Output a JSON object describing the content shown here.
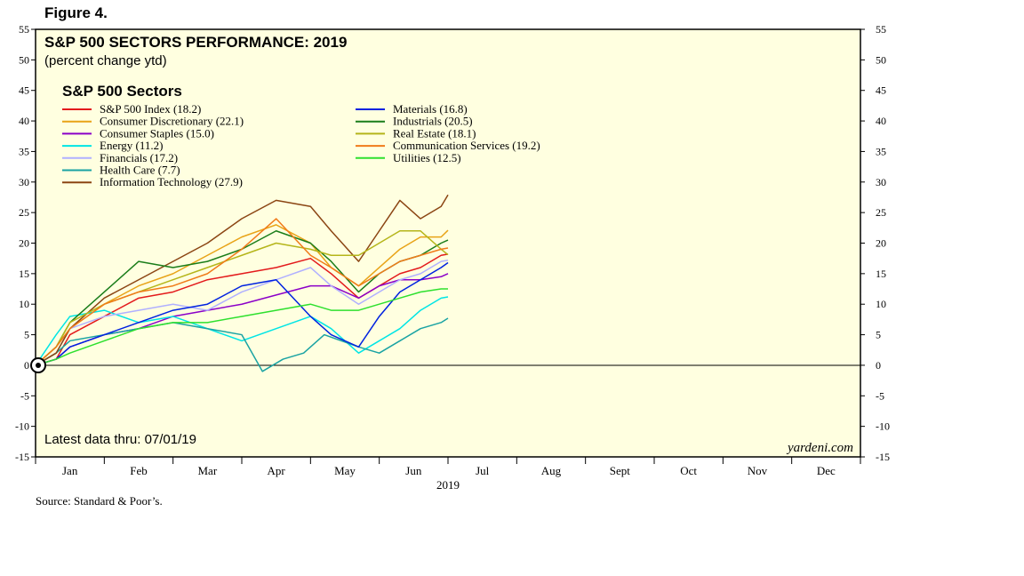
{
  "figure_label": "Figure 4.",
  "source": "Source: Standard & Poor’s.",
  "chart_data": {
    "type": "line",
    "title": "S&P 500 SECTORS PERFORMANCE: 2019",
    "subtitle": "(percent change ytd)",
    "legend_title": "S&P 500 Sectors",
    "year_label": "2019",
    "note": "Latest data thru: 07/01/19",
    "watermark": "yardeni.com",
    "ylim": [
      -15,
      55
    ],
    "y_ticks": [
      55,
      50,
      45,
      40,
      35,
      30,
      25,
      20,
      15,
      10,
      5,
      0,
      -5,
      -10,
      -15
    ],
    "months": [
      "Jan",
      "Feb",
      "Mar",
      "Apr",
      "May",
      "Jun",
      "Jul",
      "Aug",
      "Sept",
      "Oct",
      "Nov",
      "Dec"
    ],
    "x_range_months": [
      0,
      12
    ],
    "series": [
      {
        "name": "S&P 500 Index (18.2)",
        "color": "#e31a1c",
        "x": [
          0,
          0.3,
          0.5,
          1,
          1.5,
          2,
          2.5,
          3,
          3.5,
          4,
          4.3,
          4.7,
          5,
          5.3,
          5.6,
          5.9,
          6.0
        ],
        "values": [
          0,
          1,
          5,
          8,
          11,
          12,
          14,
          15,
          16,
          17.5,
          15,
          11,
          13,
          15,
          16,
          18,
          18.2
        ]
      },
      {
        "name": "Consumer Discretionary (22.1)",
        "color": "#e8a317",
        "x": [
          0,
          0.3,
          0.5,
          1,
          1.5,
          2,
          2.5,
          3,
          3.5,
          4,
          4.3,
          4.7,
          5,
          5.3,
          5.6,
          5.9,
          6.0
        ],
        "values": [
          0,
          3,
          6,
          10,
          13,
          15,
          18,
          21,
          23,
          20,
          16,
          13,
          16,
          19,
          21,
          21,
          22.1
        ]
      },
      {
        "name": "Consumer Staples (15.0)",
        "color": "#8b00c8",
        "x": [
          0,
          0.3,
          0.5,
          1,
          1.5,
          2,
          2.5,
          3,
          3.5,
          4,
          4.3,
          4.7,
          5,
          5.3,
          5.6,
          5.9,
          6.0
        ],
        "values": [
          0,
          1,
          3,
          5,
          6,
          8,
          9,
          10,
          11.5,
          13,
          13,
          11,
          13,
          14,
          14,
          14.5,
          15.0
        ]
      },
      {
        "name": "Energy (11.2)",
        "color": "#00e5e5",
        "x": [
          0,
          0.3,
          0.5,
          1,
          1.5,
          2,
          2.5,
          3,
          3.5,
          4,
          4.3,
          4.7,
          5,
          5.3,
          5.6,
          5.9,
          6.0
        ],
        "values": [
          0,
          5,
          8,
          9,
          7,
          8,
          6,
          4,
          6,
          8,
          6,
          2,
          4,
          6,
          9,
          11,
          11.2
        ]
      },
      {
        "name": "Financials (17.2)",
        "color": "#b0b0ff",
        "x": [
          0,
          0.3,
          0.5,
          1,
          1.5,
          2,
          2.5,
          3,
          3.5,
          4,
          4.3,
          4.7,
          5,
          5.3,
          5.6,
          5.9,
          6.0
        ],
        "values": [
          0,
          2,
          6,
          8,
          9,
          10,
          9,
          12,
          14,
          16,
          13,
          10,
          12,
          14,
          15,
          17,
          17.2
        ]
      },
      {
        "name": "Health Care (7.7)",
        "color": "#1aa3a3",
        "x": [
          0,
          0.3,
          0.5,
          1,
          1.5,
          2,
          2.5,
          3,
          3.3,
          3.6,
          3.9,
          4.2,
          4.7,
          5,
          5.3,
          5.6,
          5.9,
          6.0
        ],
        "values": [
          0,
          2,
          4,
          5,
          6,
          7,
          6,
          5,
          -1,
          1,
          2,
          5,
          3,
          2,
          4,
          6,
          7,
          7.7
        ]
      },
      {
        "name": "Information Technology (27.9)",
        "color": "#8b4513",
        "x": [
          0,
          0.3,
          0.5,
          1,
          1.5,
          2,
          2.5,
          3,
          3.5,
          4,
          4.3,
          4.7,
          5,
          5.3,
          5.6,
          5.9,
          6.0
        ],
        "values": [
          0,
          2,
          6,
          11,
          14,
          17,
          20,
          24,
          27,
          26,
          22,
          17,
          22,
          27,
          24,
          26,
          27.9
        ]
      },
      {
        "name": "Materials (16.8)",
        "color": "#0022e0",
        "x": [
          0,
          0.3,
          0.5,
          1,
          1.5,
          2,
          2.5,
          3,
          3.5,
          4,
          4.3,
          4.7,
          5,
          5.3,
          5.6,
          5.9,
          6.0
        ],
        "values": [
          0,
          1,
          3,
          5,
          7,
          9,
          10,
          13,
          14,
          8,
          5,
          3,
          8,
          12,
          14,
          16,
          16.8
        ]
      },
      {
        "name": "Industrials (20.5)",
        "color": "#1a7d1a",
        "x": [
          0,
          0.3,
          0.5,
          1,
          1.5,
          2,
          2.5,
          3,
          3.5,
          4,
          4.3,
          4.7,
          5,
          5.3,
          5.6,
          5.9,
          6.0
        ],
        "values": [
          0,
          3,
          7,
          12,
          17,
          16,
          17,
          19,
          22,
          20,
          17,
          12,
          15,
          17,
          18,
          20,
          20.5
        ]
      },
      {
        "name": "Real Estate (18.1)",
        "color": "#b5b51a",
        "x": [
          0,
          0.3,
          0.5,
          1,
          1.5,
          2,
          2.5,
          3,
          3.5,
          4,
          4.3,
          4.7,
          5,
          5.3,
          5.6,
          5.9,
          6.0
        ],
        "values": [
          0,
          3,
          7,
          10,
          12,
          14,
          16,
          18,
          20,
          19,
          18,
          18,
          20,
          22,
          22,
          19,
          18.1
        ]
      },
      {
        "name": "Communication Services (19.2)",
        "color": "#f07b1a",
        "x": [
          0,
          0.3,
          0.5,
          1,
          1.5,
          2,
          2.5,
          3,
          3.5,
          4,
          4.3,
          4.7,
          5,
          5.3,
          5.6,
          5.9,
          6.0
        ],
        "values": [
          0,
          3,
          6,
          10,
          12,
          13,
          15,
          19,
          24,
          18,
          16,
          13,
          15,
          17,
          18,
          19,
          19.2
        ]
      },
      {
        "name": "Utilities (12.5)",
        "color": "#2ee02e",
        "x": [
          0,
          0.3,
          0.5,
          1,
          1.5,
          2,
          2.5,
          3,
          3.5,
          4,
          4.3,
          4.7,
          5,
          5.3,
          5.6,
          5.9,
          6.0
        ],
        "values": [
          0,
          1,
          2,
          4,
          6,
          7,
          7,
          8,
          9,
          10,
          9,
          9,
          10,
          11,
          12,
          12.5,
          12.5
        ]
      }
    ]
  }
}
